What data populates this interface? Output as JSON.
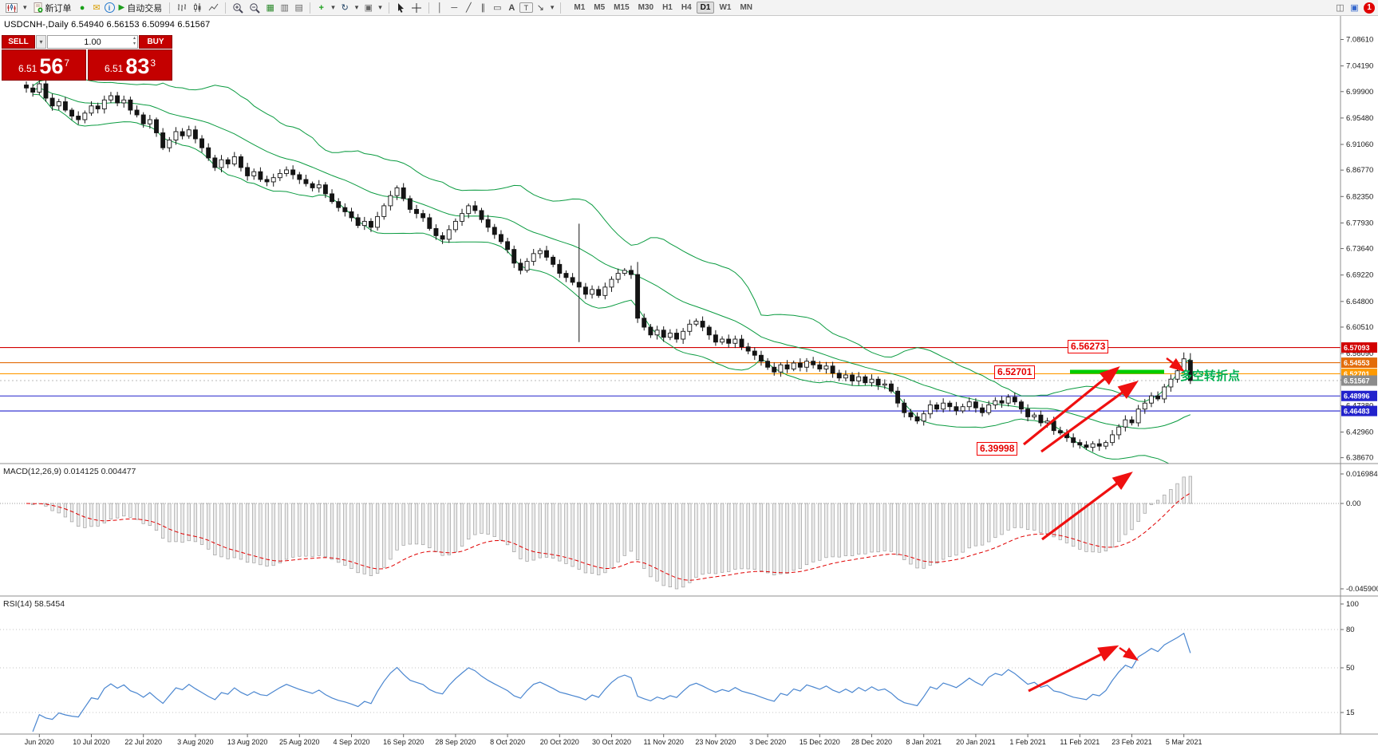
{
  "toolbar": {
    "new_order_label": "新订单",
    "autotrade_label": "自动交易",
    "timeframes": [
      "M1",
      "M5",
      "M15",
      "M30",
      "H1",
      "H4",
      "D1",
      "W1",
      "MN"
    ],
    "active_timeframe": "D1",
    "notification_badge": "1"
  },
  "symbol_bar": {
    "text": "USDCNH-,Daily 6.54940 6.56153 6.50994 6.51567"
  },
  "trade_panel": {
    "sell_label": "SELL",
    "buy_label": "BUY",
    "volume": "1.00",
    "sell_price": {
      "main": "6.51",
      "big": "56",
      "sup": "7"
    },
    "buy_price": {
      "main": "6.51",
      "big": "83",
      "sup": "3"
    }
  },
  "chart_data": {
    "type": "candlestick",
    "symbol": "USDCNH-",
    "timeframe": "Daily",
    "ohlc_today": {
      "open": "6.54940",
      "high": "6.56153",
      "low": "6.50994",
      "close": "6.51567"
    },
    "price_axis_ticks": [
      "7.08610",
      "7.04190",
      "6.99900",
      "6.95480",
      "6.91060",
      "6.86770",
      "6.82350",
      "6.77930",
      "6.73640",
      "6.69220",
      "6.64800",
      "6.60510",
      "6.56090",
      "6.51670",
      "6.47380",
      "6.42960",
      "6.38670"
    ],
    "date_labels": [
      "Jun 2020",
      "10 Jul 2020",
      "22 Jul 2020",
      "3 Aug 2020",
      "13 Aug 2020",
      "25 Aug 2020",
      "4 Sep 2020",
      "16 Sep 2020",
      "28 Sep 2020",
      "8 Oct 2020",
      "20 Oct 2020",
      "30 Oct 2020",
      "11 Nov 2020",
      "23 Nov 2020",
      "3 Dec 2020",
      "15 Dec 2020",
      "28 Dec 2020",
      "8 Jan 2021",
      "20 Jan 2021",
      "1 Feb 2021",
      "11 Feb 2021",
      "23 Feb 2021",
      "5 Mar 2021"
    ],
    "closes": [
      7.005,
      6.998,
      7.012,
      6.988,
      6.975,
      6.982,
      6.968,
      6.958,
      6.952,
      6.963,
      6.975,
      6.97,
      6.985,
      6.992,
      6.98,
      6.985,
      6.968,
      6.96,
      6.945,
      6.952,
      6.93,
      6.905,
      6.918,
      6.932,
      6.925,
      6.935,
      6.92,
      6.905,
      6.888,
      6.872,
      6.885,
      6.878,
      6.89,
      6.872,
      6.858,
      6.865,
      6.852,
      6.848,
      6.855,
      6.862,
      6.868,
      6.86,
      6.852,
      6.845,
      6.838,
      6.843,
      6.828,
      6.815,
      6.805,
      6.798,
      6.788,
      6.775,
      6.782,
      6.772,
      6.79,
      6.808,
      6.825,
      6.838,
      6.82,
      6.802,
      6.795,
      6.788,
      6.77,
      6.758,
      6.752,
      6.768,
      6.782,
      6.795,
      6.808,
      6.8,
      6.785,
      6.772,
      6.76,
      6.748,
      6.735,
      6.712,
      6.7,
      6.715,
      6.728,
      6.733,
      6.722,
      6.71,
      6.695,
      6.688,
      6.68,
      6.672,
      6.66,
      6.668,
      6.658,
      6.672,
      6.685,
      6.695,
      6.7,
      6.693,
      6.62,
      6.605,
      6.592,
      6.6,
      6.588,
      6.595,
      6.585,
      6.598,
      6.61,
      6.615,
      6.605,
      6.592,
      6.58,
      6.585,
      6.578,
      6.585,
      6.572,
      6.565,
      6.558,
      6.548,
      6.538,
      6.53,
      6.542,
      6.535,
      6.545,
      6.538,
      6.548,
      6.542,
      6.535,
      6.54,
      6.528,
      6.52,
      6.525,
      6.515,
      6.522,
      6.512,
      6.518,
      6.508,
      6.51,
      6.498,
      6.478,
      6.462,
      6.455,
      6.448,
      6.46,
      6.475,
      6.468,
      6.478,
      6.472,
      6.465,
      6.472,
      6.48,
      6.47,
      6.462,
      6.475,
      6.482,
      6.478,
      6.488,
      6.48,
      6.468,
      6.455,
      6.458,
      6.445,
      6.448,
      6.432,
      6.428,
      6.42,
      6.412,
      6.408,
      6.404,
      6.41,
      6.406,
      6.412,
      6.425,
      6.438,
      6.45,
      6.445,
      6.468,
      6.478,
      6.49,
      6.485,
      6.505,
      6.518,
      6.532,
      6.552,
      6.51567
    ],
    "candle_overrides": {
      "85": {
        "o": 6.68,
        "h": 6.778,
        "l": 6.58,
        "c": 6.672
      },
      "94": {
        "o": 6.693,
        "h": 6.714,
        "l": 6.612,
        "c": 6.62
      },
      "163": {
        "o": 6.408,
        "h": 6.4145,
        "l": 6.39998,
        "c": 6.404
      },
      "178": {
        "o": 6.532,
        "h": 6.56273,
        "l": 6.5285,
        "c": 6.552
      },
      "179": {
        "o": 6.5494,
        "h": 6.56153,
        "l": 6.50994,
        "c": 6.51567
      }
    },
    "horizontal_lines": [
      {
        "price": 6.57093,
        "label": "6.57093",
        "color": "#d20000"
      },
      {
        "price": 6.54553,
        "label": "6.54553",
        "color": "#e36c09"
      },
      {
        "price": 6.52701,
        "label": "6.52701",
        "color": "#ff9a00"
      },
      {
        "price": 6.48996,
        "label": "6.48996",
        "color": "#2222cc"
      },
      {
        "price": 6.46483,
        "label": "6.46483",
        "color": "#2222cc"
      }
    ],
    "current_price": {
      "price": 6.51567,
      "label": "6.51567",
      "color": "#8c8c8c"
    },
    "indicators": {
      "bollinger": {
        "period": 20,
        "deviation": 2,
        "color": "#0a9b40"
      },
      "macd": {
        "label": "MACD(12,26,9) 0.014125 0.004477",
        "value": "0.014125",
        "signal": "0.004477",
        "axis_ticks": [
          "0.016984",
          "0.00",
          "-0.045900"
        ]
      },
      "rsi": {
        "label": "RSI(14) 58.5454",
        "value": "58.5454",
        "axis_ticks": [
          "100",
          "80",
          "50",
          "15"
        ]
      }
    },
    "annotations": {
      "high_box": "6.56273",
      "level_box": "6.52701",
      "low_box": "6.39998",
      "turning_point": "多空转折点"
    }
  }
}
